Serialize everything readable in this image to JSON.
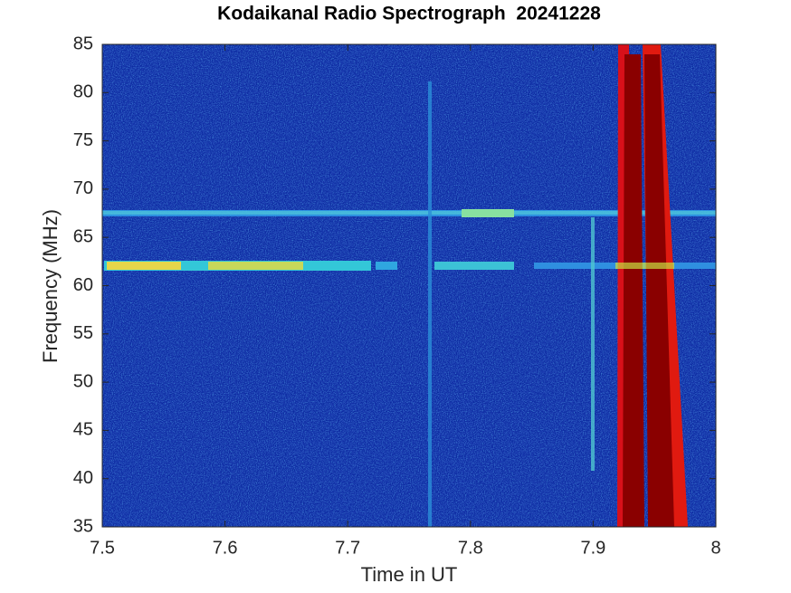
{
  "chart_data": {
    "type": "spectrogram",
    "title": "Kodaikanal Radio Spectrograph  20241228",
    "x_label": "Time in UT",
    "y_label": "Frequency (MHz)",
    "xlim": [
      7.5,
      8
    ],
    "xticks": [
      7.5,
      7.6,
      7.7,
      7.8,
      7.9,
      8
    ],
    "ylim": [
      35,
      85
    ],
    "yticks": [
      35,
      40,
      45,
      50,
      55,
      60,
      65,
      70,
      75,
      80,
      85
    ]
  }
}
